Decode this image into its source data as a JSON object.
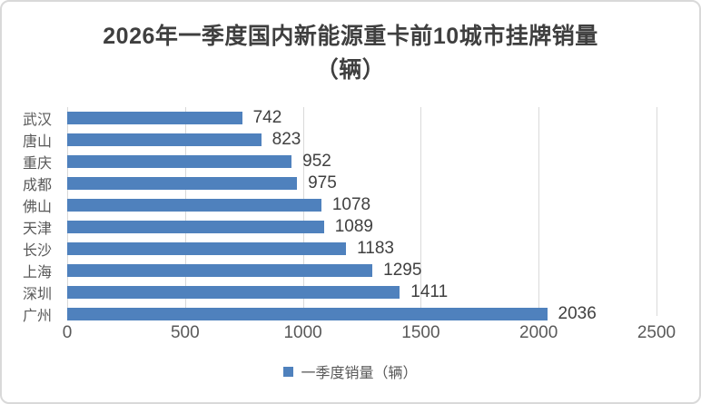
{
  "chart_data": {
    "type": "bar",
    "orientation": "horizontal",
    "title": "2026年一季度国内新能源重卡前10城市挂牌销量（辆）",
    "title_lines": [
      "2026年一季度国内新能源重卡前10城市挂牌销量",
      "（辆）"
    ],
    "categories": [
      "武汉",
      "唐山",
      "重庆",
      "成都",
      "佛山",
      "天津",
      "长沙",
      "上海",
      "深圳",
      "广州"
    ],
    "values": [
      742,
      823,
      952,
      975,
      1078,
      1089,
      1183,
      1295,
      1411,
      2036
    ],
    "series_name": "一季度销量（辆）",
    "data_labels": true,
    "x_ticks": [
      0,
      500,
      1000,
      1500,
      2000,
      2500
    ],
    "xlim": [
      0,
      2500
    ],
    "xlabel": "",
    "ylabel": "",
    "grid": true,
    "legend_position": "bottom",
    "bar_color": "#4F81BD"
  },
  "colors": {
    "bar": "#4F81BD",
    "gridline": "#d9d9d9",
    "axis_text": "#595959",
    "value_text": "#404040",
    "title_text": "#3f3f3f",
    "chart_border": "#d9d9d9",
    "background": "#ffffff"
  }
}
